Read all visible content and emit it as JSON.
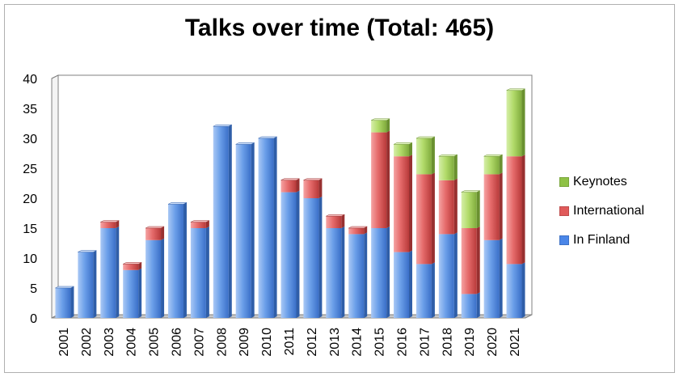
{
  "chart_data": {
    "type": "bar",
    "stacked": true,
    "title": "Talks over time (Total: 465)",
    "categories": [
      "2001",
      "2002",
      "2003",
      "2004",
      "2005",
      "2006",
      "2007",
      "2008",
      "2009",
      "2010",
      "2011",
      "2012",
      "2013",
      "2014",
      "2015",
      "2016",
      "2017",
      "2018",
      "2019",
      "2020",
      "2021"
    ],
    "series": [
      {
        "name": "In Finland",
        "color": "#4a86e8",
        "values": [
          5,
          11,
          15,
          8,
          13,
          19,
          15,
          32,
          29,
          30,
          21,
          20,
          15,
          14,
          15,
          11,
          9,
          14,
          4,
          13,
          9
        ]
      },
      {
        "name": "International",
        "color": "#e05a5a",
        "values": [
          0,
          0,
          1,
          1,
          2,
          0,
          1,
          0,
          0,
          0,
          2,
          3,
          2,
          1,
          16,
          16,
          15,
          9,
          11,
          11,
          18
        ]
      },
      {
        "name": "Keynotes",
        "color": "#8fc246",
        "values": [
          0,
          0,
          0,
          0,
          0,
          0,
          0,
          0,
          0,
          0,
          0,
          0,
          0,
          0,
          2,
          2,
          6,
          4,
          6,
          3,
          11
        ]
      }
    ],
    "ylim": [
      0,
      40
    ],
    "yticks": [
      0,
      5,
      10,
      15,
      20,
      25,
      30,
      35,
      40
    ],
    "grid": true,
    "legend_position": "right"
  }
}
